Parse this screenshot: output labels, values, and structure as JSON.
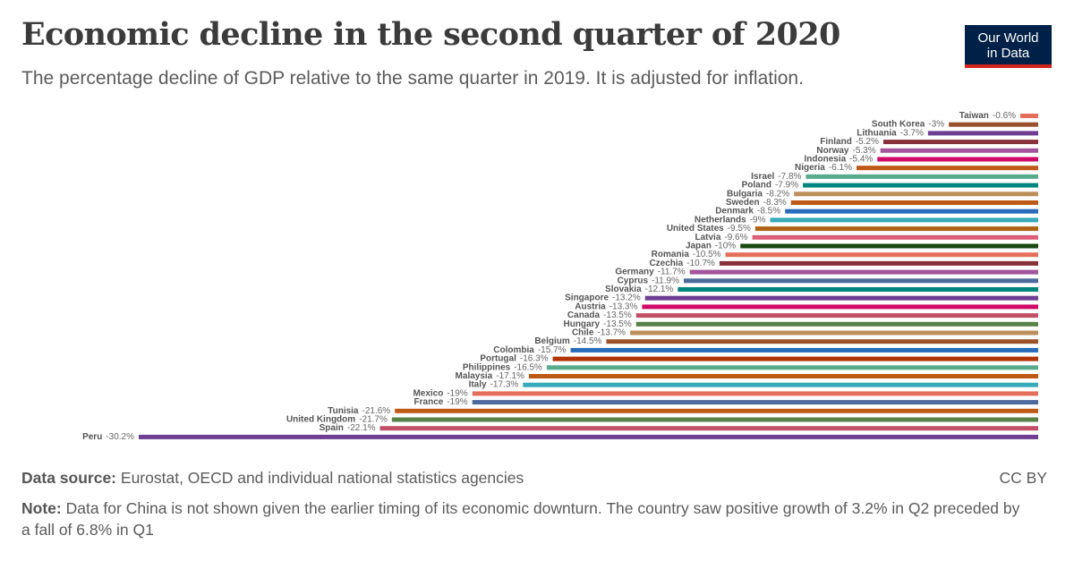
{
  "header": {
    "title": "Economic decline in the second quarter of 2020",
    "subtitle": "The percentage decline of GDP relative to the same quarter in 2019. It is adjusted for inflation."
  },
  "logo": {
    "line1": "Our World",
    "line2": "in Data",
    "bg_color": "#002147",
    "accent_color": "#ce261e"
  },
  "footer": {
    "source_label": "Data source:",
    "source_text": "Eurostat, OECD and individual national statistics agencies",
    "note_label": "Note:",
    "note_text": "Data for China is not shown given the earlier timing of its economic downturn. The country saw positive growth of 3.2% in Q2 preceded by a fall of 6.8% in Q1",
    "license": "CC BY"
  },
  "chart_data": {
    "type": "bar",
    "orientation": "horizontal",
    "title": "Economic decline in the second quarter of 2020",
    "unit": "%",
    "xlim": [
      -30.2,
      0
    ],
    "grid": false,
    "categories": [
      "Taiwan",
      "South Korea",
      "Lithuania",
      "Finland",
      "Norway",
      "Indonesia",
      "Nigeria",
      "Israel",
      "Poland",
      "Bulgaria",
      "Sweden",
      "Denmark",
      "Netherlands",
      "United States",
      "Latvia",
      "Japan",
      "Romania",
      "Czechia",
      "Germany",
      "Cyprus",
      "Slovakia",
      "Singapore",
      "Austria",
      "Canada",
      "Hungary",
      "Chile",
      "Belgium",
      "Colombia",
      "Portugal",
      "Philippines",
      "Malaysia",
      "Italy",
      "Mexico",
      "France",
      "Tunisia",
      "United Kingdom",
      "Spain",
      "Peru"
    ],
    "values": [
      -0.6,
      -3,
      -3.7,
      -5.2,
      -5.3,
      -5.4,
      -6.1,
      -7.8,
      -7.9,
      -8.2,
      -8.3,
      -8.5,
      -9,
      -9.5,
      -9.6,
      -10,
      -10.5,
      -10.7,
      -11.7,
      -11.9,
      -12.1,
      -13.2,
      -13.3,
      -13.5,
      -13.5,
      -13.7,
      -14.5,
      -15.7,
      -16.3,
      -16.5,
      -17.1,
      -17.3,
      -19,
      -19,
      -21.6,
      -21.7,
      -22.1,
      -30.2
    ],
    "labels": [
      "-0.6%",
      "-3%",
      "-3.7%",
      "-5.2%",
      "-5.3%",
      "-5.4%",
      "-6.1%",
      "-7.8%",
      "-7.9%",
      "-8.2%",
      "-8.3%",
      "-8.5%",
      "-9%",
      "-9.5%",
      "-9.6%",
      "-10%",
      "-10.5%",
      "-10.7%",
      "-11.7%",
      "-11.9%",
      "-12.1%",
      "-13.2%",
      "-13.3%",
      "-13.5%",
      "-13.5%",
      "-13.7%",
      "-14.5%",
      "-15.7%",
      "-16.3%",
      "-16.5%",
      "-17.1%",
      "-17.3%",
      "-19%",
      "-19%",
      "-21.6%",
      "-21.7%",
      "-22.1%",
      "-30.2%"
    ],
    "colors": [
      "#e56e5a",
      "#9a5129",
      "#6d3e91",
      "#883039",
      "#a2559c",
      "#cf0a66",
      "#c05917",
      "#58ac8c",
      "#00847e",
      "#bc8e5a",
      "#be5915",
      "#286bbb",
      "#38aaba",
      "#b16214",
      "#dc5e78",
      "#18470f",
      "#e56e5a",
      "#883039",
      "#a2559c",
      "#4c6a9c",
      "#00847e",
      "#6d3e91",
      "#cf0a66",
      "#c15065",
      "#578145",
      "#bc8e5a",
      "#9a5129",
      "#286bbb",
      "#b13507",
      "#58ac8c",
      "#be5915",
      "#38aaba",
      "#e56e5a",
      "#4c6a9c",
      "#c05917",
      "#578145",
      "#c15065",
      "#6d3e91"
    ]
  }
}
